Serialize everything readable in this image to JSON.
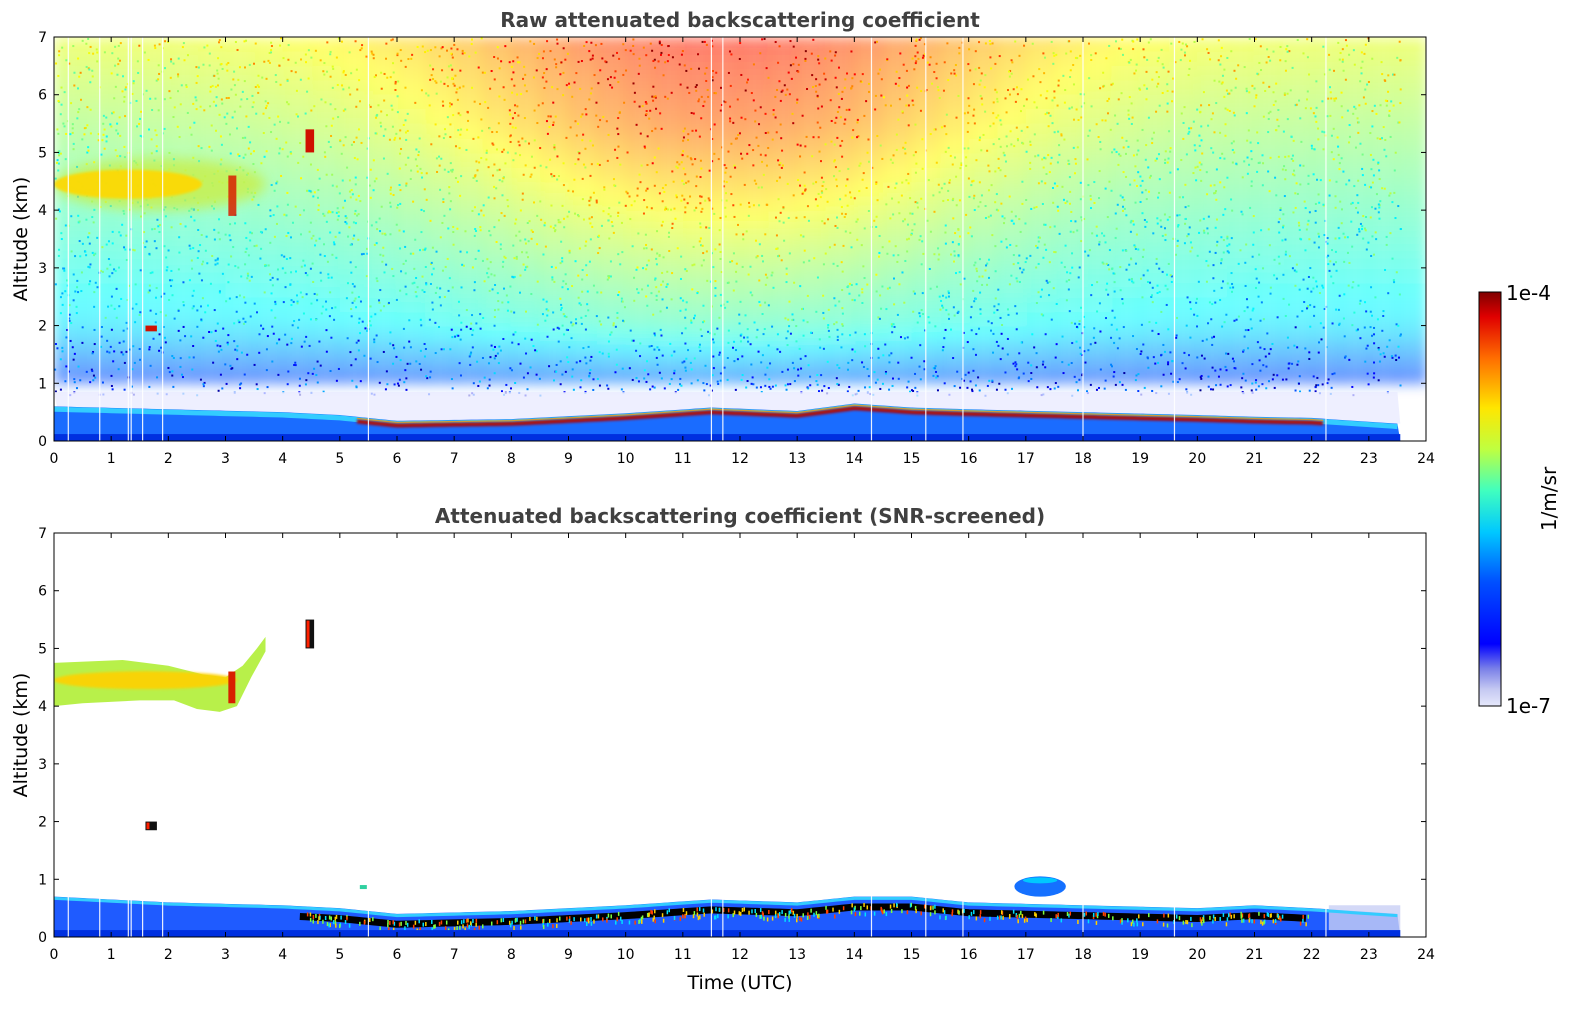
{
  "chart_data": [
    {
      "type": "heatmap",
      "title": "Raw attenuated backscattering coefficient",
      "xlabel": "",
      "ylabel": "Altitude (km)",
      "xlim": [
        0,
        24
      ],
      "ylim": [
        0,
        7
      ],
      "xticks": [
        "0",
        "1",
        "2",
        "3",
        "4",
        "5",
        "6",
        "7",
        "8",
        "9",
        "10",
        "11",
        "12",
        "13",
        "14",
        "15",
        "16",
        "17",
        "18",
        "19",
        "20",
        "21",
        "22",
        "23",
        "24"
      ],
      "yticks": [
        "0",
        "1",
        "2",
        "3",
        "4",
        "5",
        "6",
        "7"
      ],
      "data_end_hour": 23.55,
      "boundary_layer_top_km": [
        [
          0,
          0.6
        ],
        [
          2,
          0.55
        ],
        [
          4,
          0.5
        ],
        [
          5,
          0.45
        ],
        [
          6,
          0.35
        ],
        [
          8,
          0.38
        ],
        [
          10,
          0.48
        ],
        [
          11.5,
          0.58
        ],
        [
          13,
          0.52
        ],
        [
          14,
          0.65
        ],
        [
          15,
          0.58
        ],
        [
          16,
          0.55
        ],
        [
          18,
          0.5
        ],
        [
          20,
          0.45
        ],
        [
          21,
          0.42
        ],
        [
          22,
          0.4
        ],
        [
          23.5,
          0.3
        ]
      ],
      "cloud_layers": [
        {
          "x_start": 0,
          "x_end": 3.7,
          "y_bottom_km": 4.0,
          "y_top_km": 4.9,
          "intensity": "high"
        },
        {
          "x_start": 4.4,
          "x_end": 4.55,
          "y_bottom_km": 5.0,
          "y_top_km": 5.4,
          "intensity": "very high"
        },
        {
          "x_start": 1.6,
          "x_end": 1.8,
          "y_bottom_km": 1.9,
          "y_top_km": 2.0,
          "intensity": "very high"
        }
      ],
      "noise_region": "upper troposphere noisy signal, strongest between 7 and 14 UTC"
    },
    {
      "type": "heatmap",
      "title": "Attenuated backscattering coefficient (SNR-screened)",
      "xlabel": "Time (UTC)",
      "ylabel": "Altitude (km)",
      "xlim": [
        0,
        24
      ],
      "ylim": [
        0,
        7
      ],
      "xticks": [
        "0",
        "1",
        "2",
        "3",
        "4",
        "5",
        "6",
        "7",
        "8",
        "9",
        "10",
        "11",
        "12",
        "13",
        "14",
        "15",
        "16",
        "17",
        "18",
        "19",
        "20",
        "21",
        "22",
        "23",
        "24"
      ],
      "yticks": [
        "0",
        "1",
        "2",
        "3",
        "4",
        "5",
        "6",
        "7"
      ],
      "data_end_hour": 23.55,
      "boundary_layer_top_km": [
        [
          0,
          0.7
        ],
        [
          2,
          0.6
        ],
        [
          4,
          0.55
        ],
        [
          5,
          0.5
        ],
        [
          6,
          0.4
        ],
        [
          8,
          0.45
        ],
        [
          10,
          0.55
        ],
        [
          11.5,
          0.65
        ],
        [
          13,
          0.6
        ],
        [
          14,
          0.7
        ],
        [
          15,
          0.7
        ],
        [
          16,
          0.6
        ],
        [
          18,
          0.55
        ],
        [
          20,
          0.5
        ],
        [
          21,
          0.55
        ],
        [
          22,
          0.5
        ],
        [
          23.5,
          0.4
        ]
      ],
      "cloud_layers": [
        {
          "x_start": 0,
          "x_end": 3.7,
          "y_bottom_km": 3.9,
          "y_top_km": 5.2,
          "intensity": "high"
        },
        {
          "x_start": 4.4,
          "x_end": 4.55,
          "y_bottom_km": 5.0,
          "y_top_km": 5.5,
          "intensity": "very high"
        },
        {
          "x_start": 1.6,
          "x_end": 1.8,
          "y_bottom_km": 1.85,
          "y_top_km": 2.0,
          "intensity": "very high"
        },
        {
          "x_start": 16.8,
          "x_end": 17.7,
          "y_bottom_km": 0.7,
          "y_top_km": 1.05,
          "intensity": "low"
        }
      ]
    }
  ],
  "colorbar": {
    "label": "1/m/sr",
    "max_label": "1e-4",
    "min_label": "1e-7",
    "colormap": "jet",
    "scale": "log"
  }
}
